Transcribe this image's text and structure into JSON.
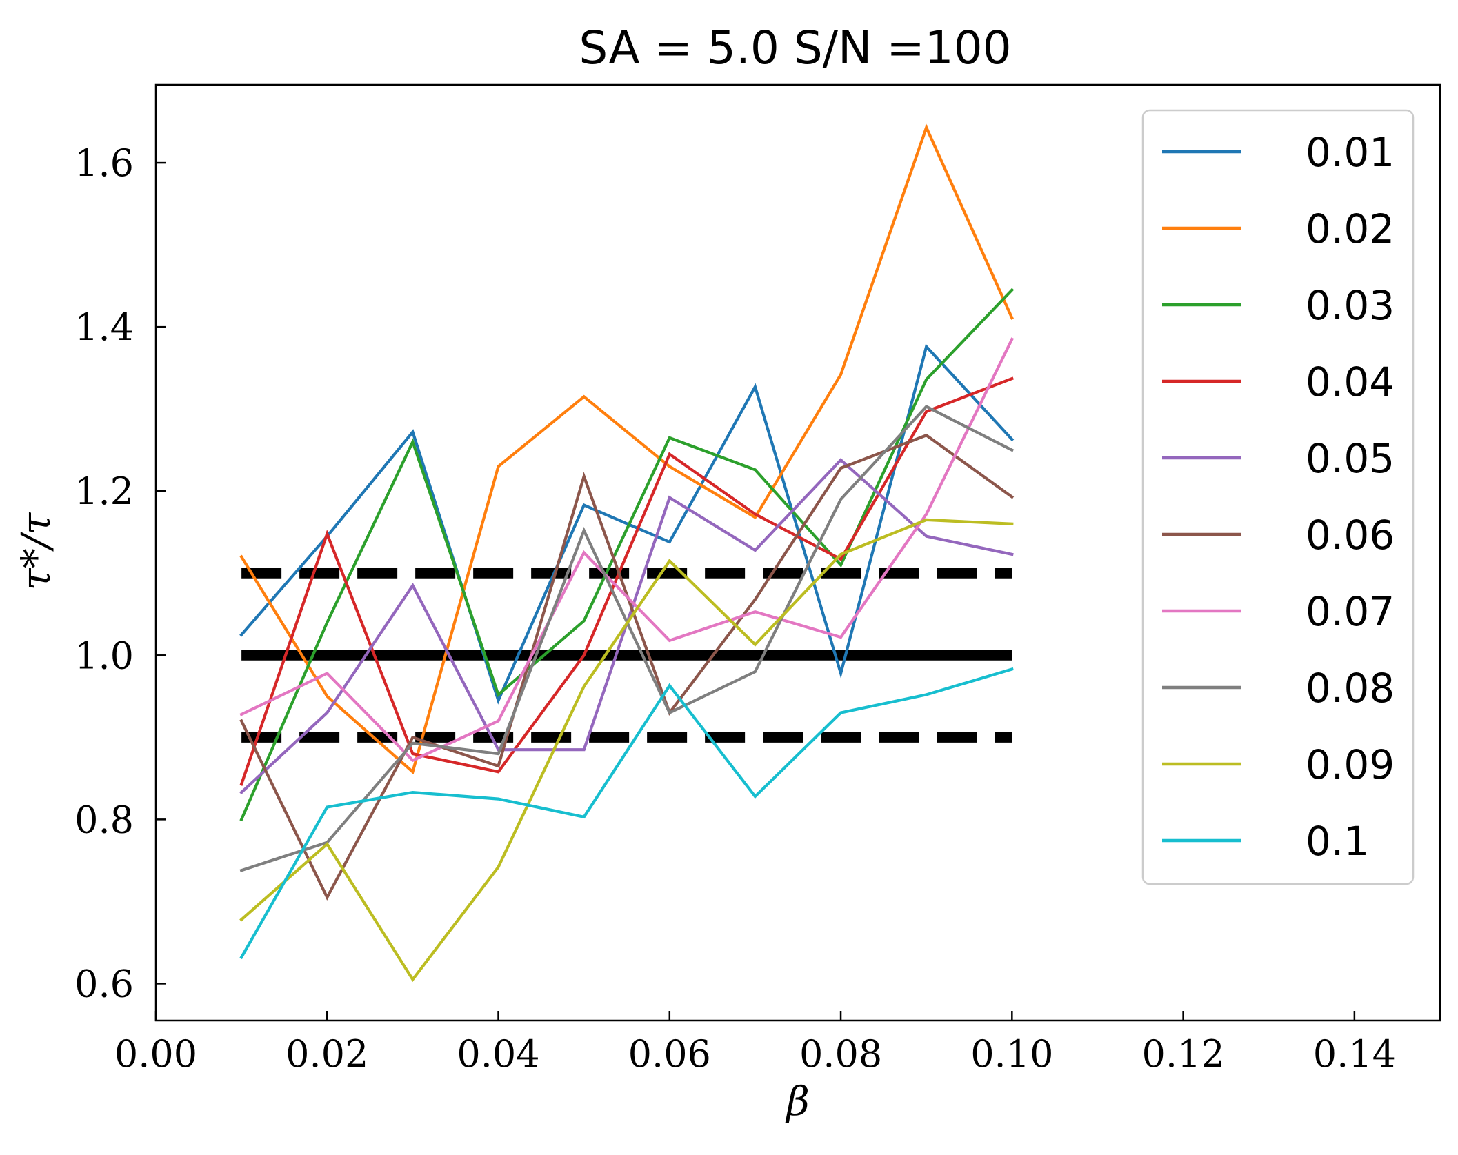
{
  "chart_data": {
    "type": "line",
    "title": "SA = 5.0 S/N =100",
    "xlabel": "β",
    "ylabel": "τ*/τ",
    "xlim": [
      0.0,
      0.15
    ],
    "ylim": [
      0.555,
      1.695
    ],
    "xticks": [
      0.0,
      0.02,
      0.04,
      0.06,
      0.08,
      0.1,
      0.12,
      0.14
    ],
    "xtick_labels": [
      "0.00",
      "0.02",
      "0.04",
      "0.06",
      "0.08",
      "0.10",
      "0.12",
      "0.14"
    ],
    "yticks": [
      0.6,
      0.8,
      1.0,
      1.2,
      1.4,
      1.6
    ],
    "ytick_labels": [
      "0.6",
      "0.8",
      "1.0",
      "1.2",
      "1.4",
      "1.6"
    ],
    "grid": false,
    "legend_position": "upper-right",
    "x": [
      0.01,
      0.02,
      0.03,
      0.04,
      0.05,
      0.06,
      0.07,
      0.08,
      0.09,
      0.1
    ],
    "series": [
      {
        "name": "0.01",
        "color": "#1f77b4",
        "values": [
          1.025,
          1.145,
          1.272,
          0.945,
          1.183,
          1.138,
          1.327,
          0.978,
          1.376,
          1.263
        ]
      },
      {
        "name": "0.02",
        "color": "#ff7f0e",
        "values": [
          1.12,
          0.95,
          0.858,
          1.23,
          1.315,
          1.23,
          1.168,
          1.342,
          1.643,
          1.411
        ]
      },
      {
        "name": "0.03",
        "color": "#2ca02c",
        "values": [
          0.8,
          1.04,
          1.26,
          0.952,
          1.042,
          1.265,
          1.226,
          1.11,
          1.336,
          1.445
        ]
      },
      {
        "name": "0.04",
        "color": "#d62728",
        "values": [
          0.843,
          1.148,
          0.88,
          0.858,
          1.0,
          1.245,
          1.172,
          1.117,
          1.297,
          1.337
        ]
      },
      {
        "name": "0.05",
        "color": "#9467bd",
        "values": [
          0.833,
          0.93,
          1.085,
          0.885,
          0.885,
          1.192,
          1.128,
          1.238,
          1.145,
          1.123
        ]
      },
      {
        "name": "0.06",
        "color": "#8c564b",
        "values": [
          0.92,
          0.705,
          0.9,
          0.865,
          1.218,
          0.93,
          1.068,
          1.228,
          1.268,
          1.193
        ]
      },
      {
        "name": "0.07",
        "color": "#e377c2",
        "values": [
          0.928,
          0.978,
          0.872,
          0.92,
          1.125,
          1.018,
          1.053,
          1.022,
          1.172,
          1.385
        ]
      },
      {
        "name": "0.08",
        "color": "#7f7f7f",
        "values": [
          0.738,
          0.772,
          0.893,
          0.88,
          1.152,
          0.93,
          0.98,
          1.19,
          1.303,
          1.25
        ]
      },
      {
        "name": "0.09",
        "color": "#bcbd22",
        "values": [
          0.678,
          0.77,
          0.605,
          0.742,
          0.962,
          1.115,
          1.013,
          1.123,
          1.165,
          1.16
        ]
      },
      {
        "name": "0.1",
        "color": "#17becf",
        "values": [
          0.632,
          0.815,
          0.833,
          0.825,
          0.803,
          0.963,
          0.828,
          0.93,
          0.952,
          0.983
        ]
      }
    ],
    "reference_lines": [
      {
        "y": 1.0,
        "style": "solid",
        "color": "#000000",
        "x_range": [
          0.0,
          0.1
        ]
      },
      {
        "y": 1.1,
        "style": "dashed",
        "color": "#000000",
        "x_range": [
          0.0,
          0.1
        ]
      },
      {
        "y": 0.9,
        "style": "dashed",
        "color": "#000000",
        "x_range": [
          0.0,
          0.1
        ]
      }
    ]
  }
}
